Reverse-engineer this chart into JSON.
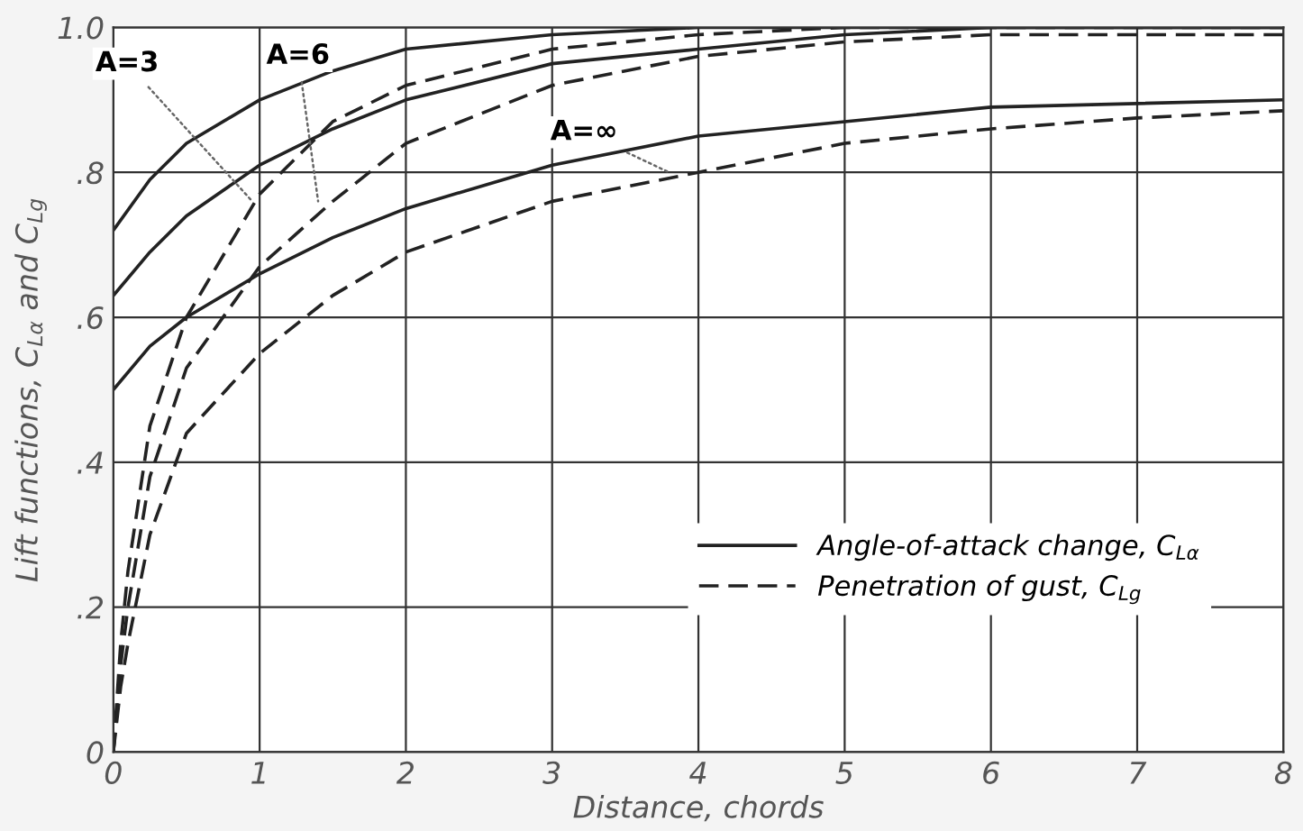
{
  "chart_data": {
    "type": "line",
    "xlabel": "Distance, chords",
    "ylabel": "Lift functions, C$_{Lα}$ and C$_{Lg}$",
    "xlim": [
      0,
      8
    ],
    "xticks": [
      0,
      1,
      2,
      3,
      4,
      5,
      6,
      7,
      8
    ],
    "ylim": [
      0,
      1.0
    ],
    "yticks": [
      {
        "value": 0,
        "label": "0"
      },
      {
        "value": 0.2,
        "label": ".2"
      },
      {
        "value": 0.4,
        "label": ".4"
      },
      {
        "value": 0.6,
        "label": ".6"
      },
      {
        "value": 0.8,
        "label": ".8"
      },
      {
        "value": 1.0,
        "label": "1.0"
      }
    ],
    "grid": true,
    "legend": "lower right",
    "marker": "none",
    "series": [
      {
        "name": "Angle-of-attack change, C$_{Lα}$",
        "color": "#222222",
        "line_style": "solid",
        "x": [
          0,
          0.25,
          0.5,
          1,
          1.5,
          2,
          3,
          4,
          5,
          8
        ],
        "values": [
          0.72,
          0.79,
          0.84,
          0.9,
          0.94,
          0.97,
          0.99,
          1.0,
          1.0,
          1.0
        ]
      },
      {
        "color": "#222222",
        "line_style": "solid",
        "x": [
          0,
          0.25,
          0.5,
          1,
          1.5,
          2,
          3,
          4,
          5,
          6,
          8
        ],
        "values": [
          0.63,
          0.69,
          0.74,
          0.81,
          0.86,
          0.9,
          0.95,
          0.97,
          0.99,
          1.0,
          1.0
        ]
      },
      {
        "color": "#222222",
        "line_style": "solid",
        "x": [
          0,
          0.25,
          0.5,
          1,
          1.5,
          2,
          3,
          4,
          5,
          6,
          7,
          8
        ],
        "values": [
          0.5,
          0.56,
          0.6,
          0.66,
          0.71,
          0.75,
          0.81,
          0.85,
          0.87,
          0.89,
          0.895,
          0.9
        ]
      },
      {
        "name": "Penetration of gust, C$_{Lg}$",
        "color": "#222222",
        "line_style": "dashed",
        "x": [
          0,
          0.05,
          0.1,
          0.25,
          0.5,
          1,
          1.5,
          2,
          3,
          4,
          5,
          8
        ],
        "values": [
          0,
          0.15,
          0.25,
          0.45,
          0.6,
          0.77,
          0.87,
          0.92,
          0.97,
          0.99,
          1.0,
          1.0
        ]
      },
      {
        "color": "#222222",
        "line_style": "dashed",
        "x": [
          0,
          0.05,
          0.1,
          0.25,
          0.5,
          1,
          1.5,
          2,
          3,
          4,
          5,
          6,
          8
        ],
        "values": [
          0,
          0.12,
          0.2,
          0.38,
          0.53,
          0.67,
          0.76,
          0.84,
          0.92,
          0.96,
          0.98,
          0.99,
          0.99
        ]
      },
      {
        "color": "#222222",
        "line_style": "dashed",
        "x": [
          0,
          0.05,
          0.1,
          0.25,
          0.5,
          1,
          1.5,
          2,
          3,
          4,
          5,
          6,
          7,
          8
        ],
        "values": [
          0,
          0.09,
          0.15,
          0.3,
          0.44,
          0.55,
          0.63,
          0.69,
          0.76,
          0.8,
          0.84,
          0.86,
          0.875,
          0.885
        ]
      }
    ],
    "annotations": [
      {
        "text": "A=3",
        "x": 0.95,
        "y": 0.76
      },
      {
        "text": "A=6",
        "x": 1.4,
        "y": 0.76
      },
      {
        "text": "A=∞",
        "x": 3.8,
        "y": 0.8
      }
    ]
  }
}
